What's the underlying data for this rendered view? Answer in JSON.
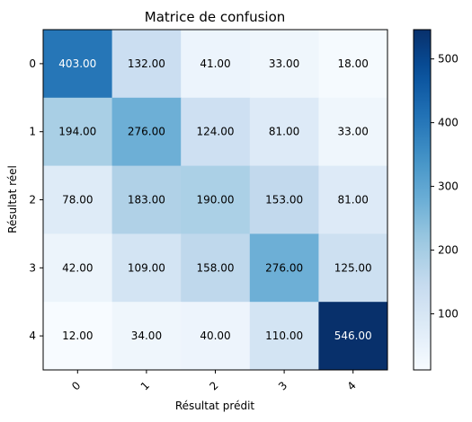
{
  "chart_data": {
    "type": "heatmap",
    "title": "Matrice de confusion",
    "xlabel": "Résultat prédit",
    "ylabel": "Résultat réel",
    "x_categories": [
      "0",
      "1",
      "2",
      "3",
      "4"
    ],
    "y_categories": [
      "0",
      "1",
      "2",
      "3",
      "4"
    ],
    "values": [
      [
        403,
        132,
        41,
        33,
        18
      ],
      [
        194,
        276,
        124,
        81,
        33
      ],
      [
        78,
        183,
        190,
        153,
        81
      ],
      [
        42,
        109,
        158,
        276,
        125
      ],
      [
        12,
        34,
        40,
        110,
        546
      ]
    ],
    "value_labels": [
      [
        "403.00",
        "132.00",
        "41.00",
        "33.00",
        "18.00"
      ],
      [
        "194.00",
        "276.00",
        "124.00",
        "81.00",
        "33.00"
      ],
      [
        "78.00",
        "183.00",
        "190.00",
        "153.00",
        "81.00"
      ],
      [
        "42.00",
        "109.00",
        "158.00",
        "276.00",
        "125.00"
      ],
      [
        "12.00",
        "34.00",
        "40.00",
        "110.00",
        "546.00"
      ]
    ],
    "colormap": "Blues",
    "color_range": [
      12,
      546
    ],
    "colorbar_ticks": [
      "100",
      "200",
      "300",
      "400",
      "500"
    ],
    "colorbar_tick_values": [
      100,
      200,
      300,
      400,
      500
    ],
    "colors": {
      "low": "#f7fbff",
      "high": "#08306b",
      "text_dark": "#000000",
      "text_light": "#ffffff"
    }
  }
}
